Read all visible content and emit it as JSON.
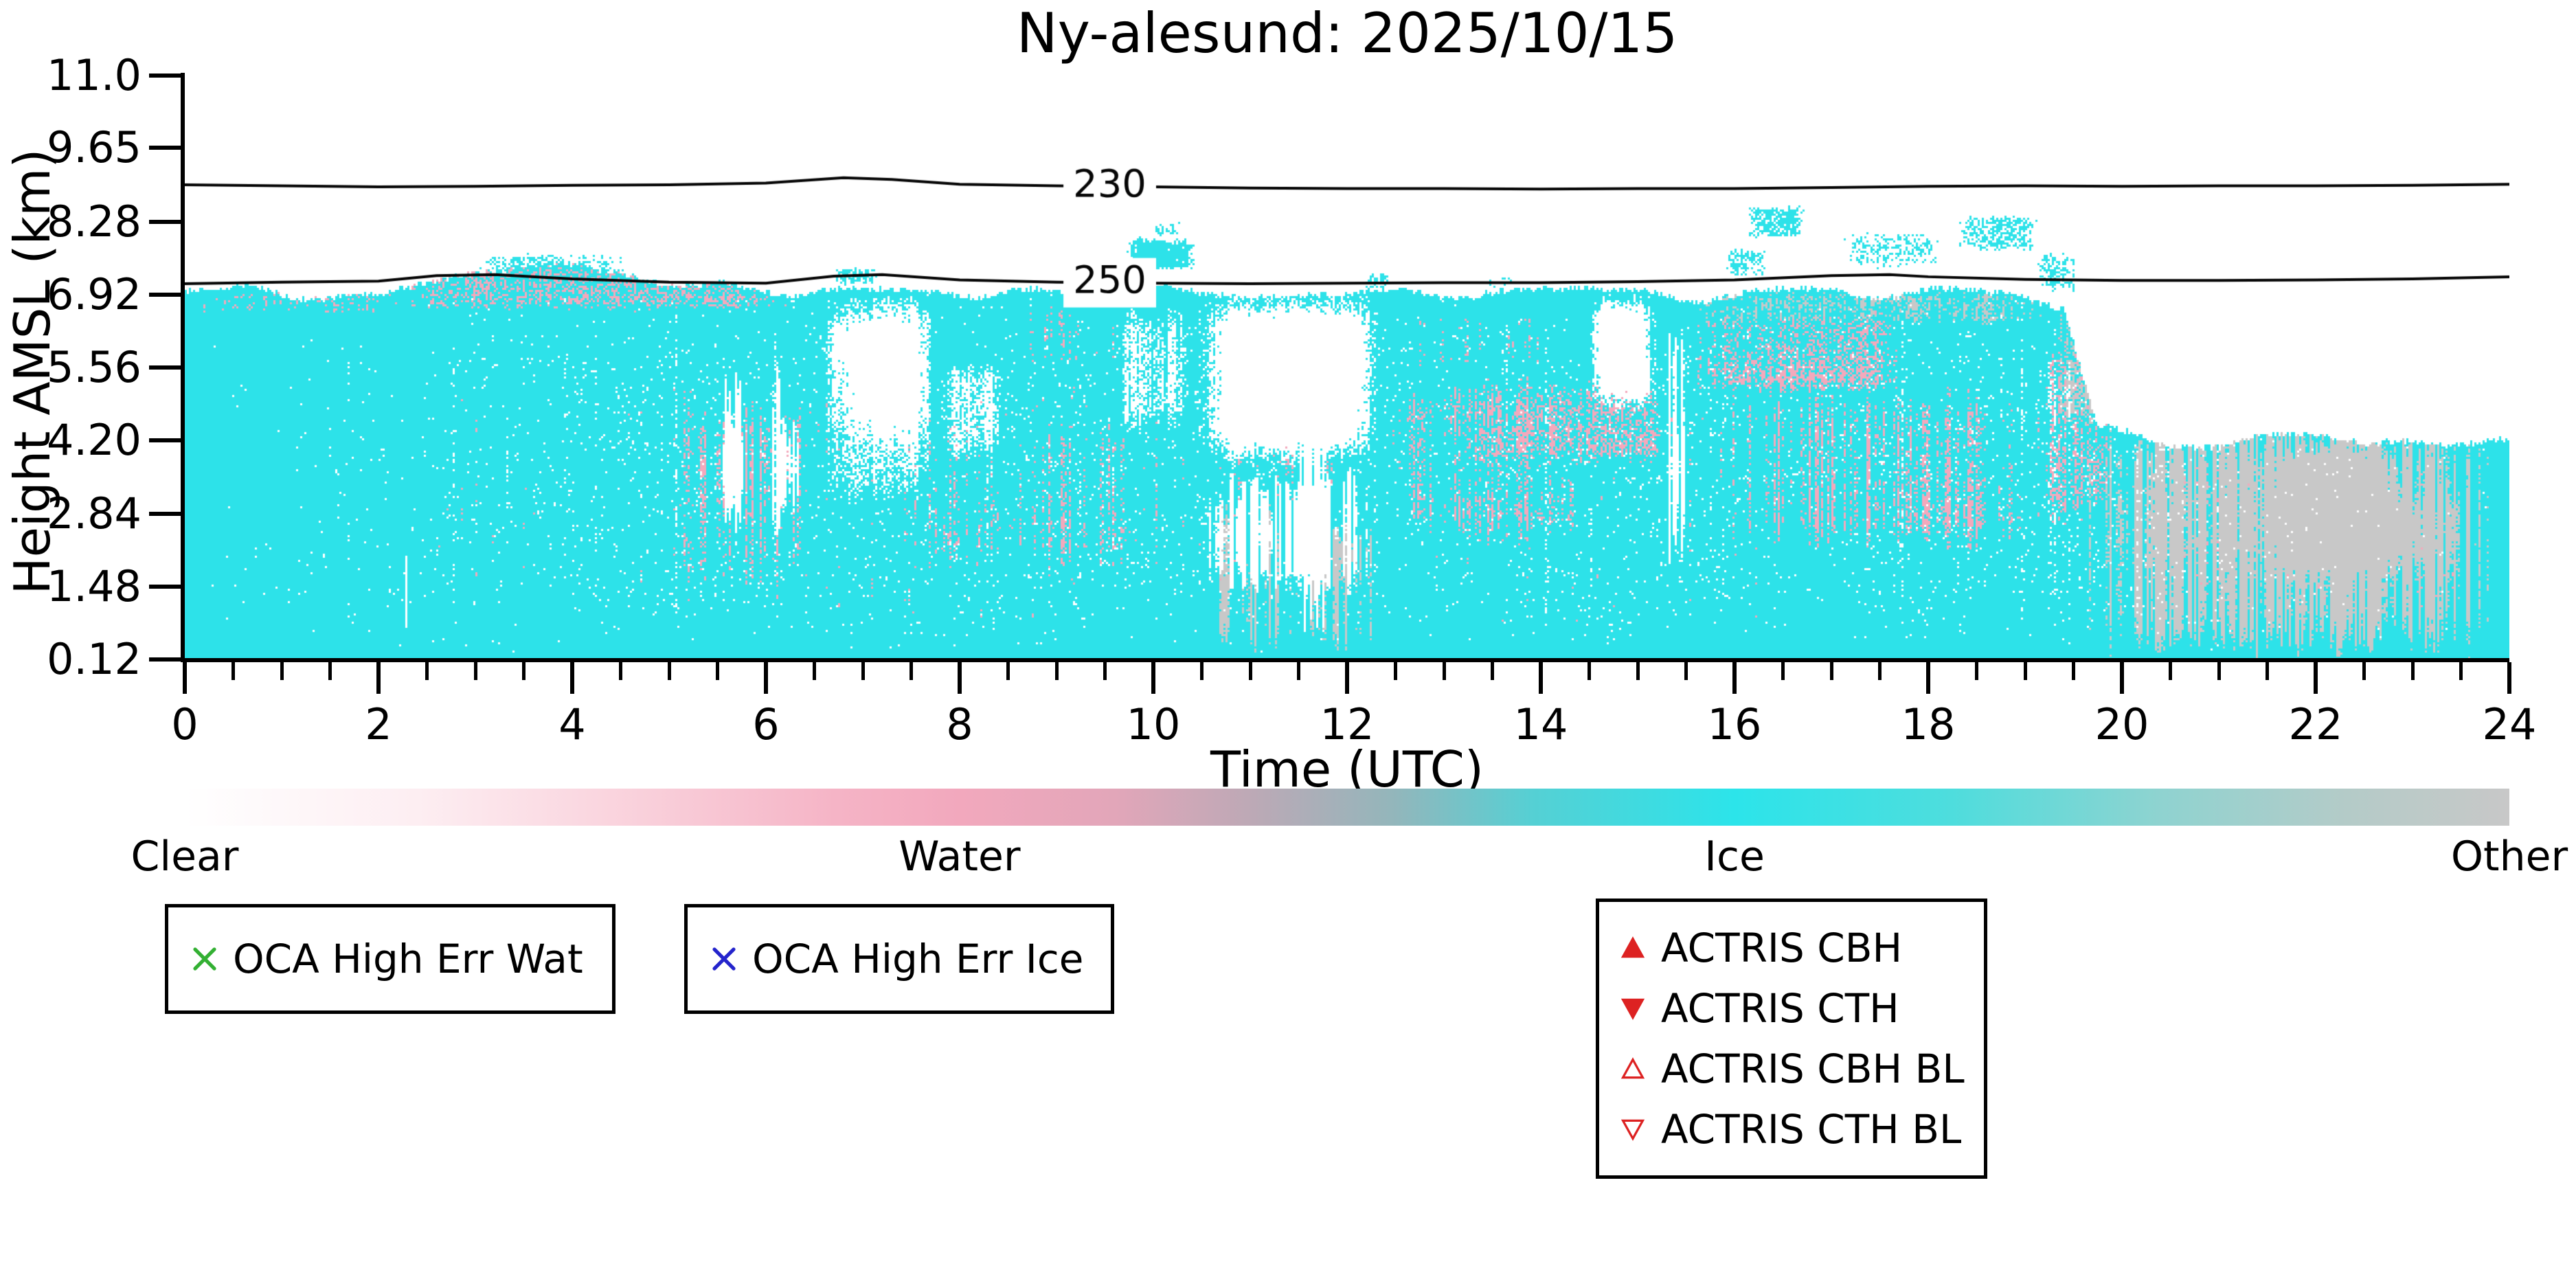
{
  "chart_data": {
    "type": "heatmap",
    "title": "Ny-alesund: 2025/10/15",
    "xlabel": "Time (UTC)",
    "ylabel": "Height AMSL (km)",
    "xlim": [
      0,
      24
    ],
    "ylim": [
      0.12,
      11.0
    ],
    "x_major_ticks": [
      "0",
      "2",
      "4",
      "6",
      "8",
      "10",
      "12",
      "14",
      "16",
      "18",
      "20",
      "22",
      "24"
    ],
    "x_minor_step": 0.5,
    "y_ticks": [
      "11.0",
      "9.65",
      "8.28",
      "6.92",
      "5.56",
      "4.20",
      "2.84",
      "1.48",
      "0.12"
    ],
    "classes": [
      "Clear",
      "Water",
      "Ice",
      "Other"
    ],
    "phase_colors": {
      "clear": "#ffffff",
      "water": "#f3a9bc",
      "ice": "#2de2e9",
      "other": "#c8c8c8"
    },
    "cloud_top_km": [
      [
        0,
        6.95
      ],
      [
        1,
        6.95
      ],
      [
        2,
        7.0
      ],
      [
        2.5,
        7.1
      ],
      [
        3,
        7.45
      ],
      [
        4,
        7.5
      ],
      [
        4.8,
        7.3
      ],
      [
        5.5,
        7.1
      ],
      [
        6,
        6.95
      ],
      [
        7,
        6.9
      ],
      [
        8,
        6.95
      ],
      [
        9,
        6.95
      ],
      [
        10,
        7.0
      ],
      [
        11,
        6.9
      ],
      [
        12,
        6.95
      ],
      [
        13,
        7.0
      ],
      [
        14,
        6.95
      ],
      [
        15,
        6.9
      ],
      [
        16,
        6.95
      ],
      [
        17,
        7.0
      ],
      [
        18,
        6.95
      ],
      [
        19,
        6.9
      ],
      [
        19.4,
        6.8
      ],
      [
        19.75,
        4.5
      ],
      [
        20,
        4.35
      ],
      [
        20.5,
        4.1
      ],
      [
        21,
        4.05
      ],
      [
        21.5,
        4.3
      ],
      [
        22,
        4.3
      ],
      [
        22.5,
        4.0
      ],
      [
        23,
        4.2
      ],
      [
        23.5,
        4.05
      ],
      [
        24,
        4.15
      ]
    ],
    "phase_regions": [
      {
        "phase": "water",
        "t": [
          0,
          2.3
        ],
        "h": [
          6.55,
          7.0
        ],
        "d": 0.25,
        "s": 0.3
      },
      {
        "phase": "water",
        "t": [
          2.2,
          6.4
        ],
        "h": [
          6.6,
          7.55
        ],
        "d": 0.45,
        "s": 0.25
      },
      {
        "phase": "water",
        "t": [
          5.1,
          6.6
        ],
        "h": [
          1.0,
          5.3
        ],
        "d": 0.33,
        "s": 0.65
      },
      {
        "phase": "water",
        "t": [
          7.3,
          10.45
        ],
        "h": [
          1.7,
          4.7
        ],
        "d": 0.3,
        "s": 0.6
      },
      {
        "phase": "water",
        "t": [
          8.3,
          10.3
        ],
        "h": [
          5.5,
          6.8
        ],
        "d": 0.15,
        "s": 0.5
      },
      {
        "phase": "water",
        "t": [
          10.6,
          12.3
        ],
        "h": [
          2.8,
          4.6
        ],
        "d": 0.25,
        "s": 0.6
      },
      {
        "phase": "water",
        "t": [
          12.3,
          14.75
        ],
        "h": [
          2.2,
          5.5
        ],
        "d": 0.38,
        "s": 0.55
      },
      {
        "phase": "water",
        "t": [
          13.1,
          15.45
        ],
        "h": [
          3.7,
          5.4
        ],
        "d": 0.45,
        "s": 0.35
      },
      {
        "phase": "water",
        "t": [
          12.35,
          14.3
        ],
        "h": [
          5.5,
          6.6
        ],
        "d": 0.18,
        "s": 0.5
      },
      {
        "phase": "water",
        "t": [
          15.5,
          17.75
        ],
        "h": [
          5.0,
          6.7
        ],
        "d": 0.55,
        "s": 0.35
      },
      {
        "phase": "water",
        "t": [
          15.55,
          19.25
        ],
        "h": [
          2.1,
          5.3
        ],
        "d": 0.28,
        "s": 0.65
      },
      {
        "phase": "water",
        "t": [
          19.15,
          19.95
        ],
        "h": [
          2.4,
          6.4
        ],
        "d": 0.4,
        "s": 0.5
      },
      {
        "phase": "water",
        "t": [
          19.9,
          24
        ],
        "h": [
          0.8,
          4.3
        ],
        "d": 0.11,
        "s": 0.3
      },
      {
        "phase": "water",
        "t": [
          0,
          19.6
        ],
        "h": [
          0.4,
          6.3
        ],
        "d": 0.035,
        "s": 0.4
      },
      {
        "phase": "other",
        "t": [
          10.55,
          11.45
        ],
        "h": [
          0.12,
          3.3
        ],
        "d": 0.35,
        "s": 0.8
      },
      {
        "phase": "other",
        "t": [
          11.45,
          12.35
        ],
        "h": [
          0.12,
          2.8
        ],
        "d": 0.4,
        "s": 0.8
      },
      {
        "phase": "other",
        "t": [
          15.35,
          19.35
        ],
        "h": [
          6.35,
          7.0
        ],
        "d": 0.5,
        "s": 0.4
      },
      {
        "phase": "other",
        "t": [
          19.3,
          19.8
        ],
        "h": [
          4.3,
          6.9
        ],
        "d": 0.5,
        "s": 0.5
      },
      {
        "phase": "other",
        "t": [
          19.5,
          24
        ],
        "h": [
          0.12,
          4.7
        ],
        "d": 0.78,
        "s": 0.75
      },
      {
        "phase": "clear",
        "t": [
          5.5,
          5.8
        ],
        "h": [
          2.3,
          5.7
        ],
        "d": 0.75,
        "s": 0.85
      },
      {
        "phase": "clear",
        "t": [
          6.05,
          6.4
        ],
        "h": [
          2.1,
          5.9
        ],
        "d": 0.7,
        "s": 0.85
      },
      {
        "phase": "clear",
        "t": [
          6.55,
          7.75
        ],
        "h": [
          2.9,
          7.05
        ],
        "d": 0.93,
        "s": 0.35
      },
      {
        "phase": "clear",
        "t": [
          7.8,
          8.45
        ],
        "h": [
          3.8,
          5.7
        ],
        "d": 0.85,
        "s": 0.4
      },
      {
        "phase": "clear",
        "t": [
          9.6,
          10.4
        ],
        "h": [
          4.3,
          6.75
        ],
        "d": 0.88,
        "s": 0.45
      },
      {
        "phase": "clear",
        "t": [
          10.45,
          12.35
        ],
        "h": [
          3.7,
          7.0
        ],
        "d": 0.92,
        "s": 0.35
      },
      {
        "phase": "clear",
        "t": [
          10.5,
          12.3
        ],
        "h": [
          1.3,
          3.8
        ],
        "d": 0.5,
        "s": 0.85
      },
      {
        "phase": "clear",
        "t": [
          11.5,
          11.8
        ],
        "h": [
          0.4,
          6.5
        ],
        "d": 0.75,
        "s": 0.9
      },
      {
        "phase": "clear",
        "t": [
          14.5,
          15.2
        ],
        "h": [
          4.7,
          7.0
        ],
        "d": 0.87,
        "s": 0.4
      },
      {
        "phase": "clear",
        "t": [
          15.25,
          15.5
        ],
        "h": [
          1.8,
          6.5
        ],
        "d": 0.7,
        "s": 0.85
      },
      {
        "phase": "clear",
        "t": [
          2.25,
          2.45
        ],
        "h": [
          0.5,
          2.2
        ],
        "d": 0.5,
        "s": 0.85
      },
      {
        "phase": "clear",
        "t": [
          0,
          24
        ],
        "h": [
          0.3,
          7.2
        ],
        "d": 0.05,
        "s": 0.85
      },
      {
        "phase": "clear",
        "t": [
          0,
          24
        ],
        "h": [
          0.2,
          7.0
        ],
        "d": 0.03,
        "s": 0.0
      },
      {
        "phase": "ice",
        "t": [
          6.7,
          7.15
        ],
        "h": [
          7.1,
          7.45
        ],
        "d": 0.55,
        "s": 0.2
      },
      {
        "phase": "ice",
        "t": [
          9.7,
          10.45
        ],
        "h": [
          7.35,
          8.0
        ],
        "d": 0.7,
        "s": 0.2
      },
      {
        "phase": "ice",
        "t": [
          12.15,
          12.45
        ],
        "h": [
          7.0,
          7.35
        ],
        "d": 0.45,
        "s": 0.2
      },
      {
        "phase": "ice",
        "t": [
          13.4,
          13.75
        ],
        "h": [
          7.0,
          7.3
        ],
        "d": 0.4,
        "s": 0.2
      },
      {
        "phase": "ice",
        "t": [
          15.9,
          16.35
        ],
        "h": [
          7.25,
          7.8
        ],
        "d": 0.5,
        "s": 0.2
      },
      {
        "phase": "ice",
        "t": [
          16.1,
          16.75
        ],
        "h": [
          7.95,
          8.6
        ],
        "d": 0.6,
        "s": 0.2
      },
      {
        "phase": "ice",
        "t": [
          17.1,
          18.15
        ],
        "h": [
          7.4,
          8.15
        ],
        "d": 0.6,
        "s": 0.2
      },
      {
        "phase": "ice",
        "t": [
          18.3,
          19.15
        ],
        "h": [
          7.7,
          8.45
        ],
        "d": 0.6,
        "s": 0.2
      },
      {
        "phase": "ice",
        "t": [
          19.1,
          19.55
        ],
        "h": [
          6.95,
          7.75
        ],
        "d": 0.6,
        "s": 0.2
      },
      {
        "phase": "ice",
        "t": [
          3.0,
          4.7
        ],
        "h": [
          7.3,
          7.7
        ],
        "d": 0.45,
        "s": 0.25
      },
      {
        "phase": "ice",
        "t": [
          10.0,
          10.3
        ],
        "h": [
          8.0,
          8.3
        ],
        "d": 0.35,
        "s": 0.2
      }
    ],
    "contours": [
      {
        "label": "230",
        "label_t": 9.55,
        "points": [
          [
            0,
            8.97
          ],
          [
            1,
            8.95
          ],
          [
            2,
            8.93
          ],
          [
            3,
            8.94
          ],
          [
            4,
            8.96
          ],
          [
            5,
            8.97
          ],
          [
            6,
            9.0
          ],
          [
            6.8,
            9.1
          ],
          [
            7.3,
            9.07
          ],
          [
            8,
            8.98
          ],
          [
            9,
            8.95
          ],
          [
            10,
            8.93
          ],
          [
            11,
            8.91
          ],
          [
            12,
            8.9
          ],
          [
            13,
            8.9
          ],
          [
            14,
            8.89
          ],
          [
            15,
            8.9
          ],
          [
            16,
            8.9
          ],
          [
            17,
            8.92
          ],
          [
            18,
            8.94
          ],
          [
            19,
            8.95
          ],
          [
            20,
            8.94
          ],
          [
            21,
            8.95
          ],
          [
            22,
            8.95
          ],
          [
            23,
            8.96
          ],
          [
            24,
            8.98
          ]
        ]
      },
      {
        "label": "250",
        "label_t": 9.55,
        "points": [
          [
            0,
            7.13
          ],
          [
            1,
            7.16
          ],
          [
            2,
            7.18
          ],
          [
            2.6,
            7.28
          ],
          [
            3.2,
            7.3
          ],
          [
            4,
            7.22
          ],
          [
            5,
            7.16
          ],
          [
            6,
            7.14
          ],
          [
            6.7,
            7.27
          ],
          [
            7.2,
            7.3
          ],
          [
            8,
            7.2
          ],
          [
            9,
            7.16
          ],
          [
            10,
            7.14
          ],
          [
            11,
            7.13
          ],
          [
            12,
            7.14
          ],
          [
            13,
            7.15
          ],
          [
            14,
            7.15
          ],
          [
            15,
            7.17
          ],
          [
            16,
            7.2
          ],
          [
            17,
            7.28
          ],
          [
            17.6,
            7.3
          ],
          [
            18,
            7.26
          ],
          [
            19,
            7.21
          ],
          [
            20,
            7.19
          ],
          [
            21,
            7.19
          ],
          [
            22,
            7.2
          ],
          [
            23,
            7.22
          ],
          [
            24,
            7.26
          ]
        ]
      }
    ],
    "colorbar": {
      "labels": [
        {
          "text": "Clear",
          "pos": 0
        },
        {
          "text": "Water",
          "pos": 0.3333
        },
        {
          "text": "Ice",
          "pos": 0.6667
        },
        {
          "text": "Other",
          "pos": 1
        }
      ],
      "stops": [
        [
          0,
          "#ffffff"
        ],
        [
          0.1,
          "#fdeef2"
        ],
        [
          0.2,
          "#f9cfda"
        ],
        [
          0.28,
          "#f5b4c6"
        ],
        [
          0.3333,
          "#f2a8bd"
        ],
        [
          0.4,
          "#e2a6b9"
        ],
        [
          0.46,
          "#bca9b6"
        ],
        [
          0.52,
          "#93b6bb"
        ],
        [
          0.58,
          "#55d0d4"
        ],
        [
          0.6667,
          "#2ce4ea"
        ],
        [
          0.76,
          "#4edddd"
        ],
        [
          0.85,
          "#8fd3d0"
        ],
        [
          0.93,
          "#b4cbc8"
        ],
        [
          1,
          "#c8c8c8"
        ]
      ]
    },
    "legend": {
      "oca_wat": {
        "label": "OCA High Err Wat",
        "marker": "x",
        "marker_color": "#33b033"
      },
      "oca_ice": {
        "label": "OCA High Err Ice",
        "marker": "x",
        "marker_color": "#2424cc"
      },
      "actris": {
        "marker_color": "#dd2222",
        "items": [
          {
            "label": "ACTRIS CBH",
            "marker": "up-filled"
          },
          {
            "label": "ACTRIS CTH",
            "marker": "down-filled"
          },
          {
            "label": "ACTRIS CBH BL",
            "marker": "up-open"
          },
          {
            "label": "ACTRIS CTH BL",
            "marker": "down-open"
          }
        ]
      }
    }
  }
}
